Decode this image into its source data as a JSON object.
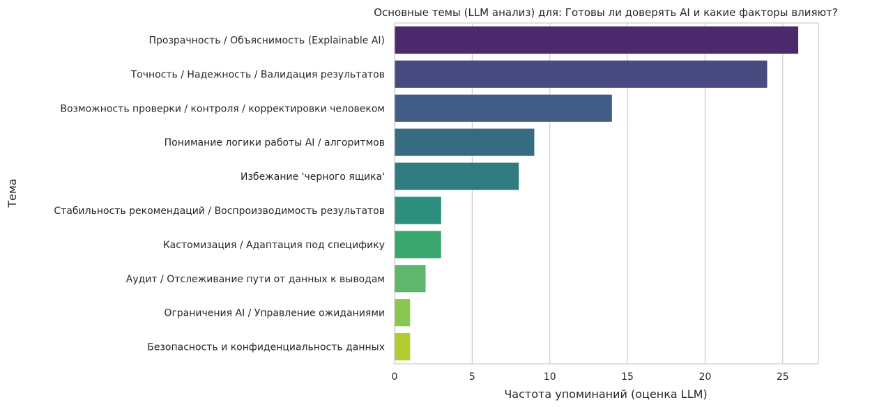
{
  "chart_data": {
    "type": "bar",
    "orientation": "horizontal",
    "title": "Основные темы (LLM анализ) для: Готовы ли доверять AI и какие факторы влияют?",
    "xlabel": "Частота упоминаний (оценка LLM)",
    "ylabel": "Тема",
    "xlim": [
      0,
      27.3
    ],
    "xticks": [
      0,
      5,
      10,
      15,
      20,
      25
    ],
    "grid": "vertical",
    "categories": [
      "Прозрачность / Объяснимость (Explainable AI)",
      "Точность / Надежность / Валидация результатов",
      "Возможность проверки / контроля / корректировки человеком",
      "Понимание логики работы AI / алгоритмов",
      "Избежание 'черного ящика'",
      "Стабильность рекомендаций / Воспроизводимость результатов",
      "Кастомизация / Адаптация под специфику",
      "Аудит / Отслеживание пути от данных к выводам",
      "Ограничения AI / Управление ожиданиями",
      "Безопасность и конфиденциальность данных"
    ],
    "values": [
      26,
      24,
      14,
      9,
      8,
      3,
      3,
      2,
      1,
      1
    ],
    "colors": [
      "#4a2a6a",
      "#494a7f",
      "#415c86",
      "#366c81",
      "#2f7b7f",
      "#2d8e7d",
      "#3aa76f",
      "#5fb76d",
      "#8ac650",
      "#b1cc2f"
    ]
  }
}
